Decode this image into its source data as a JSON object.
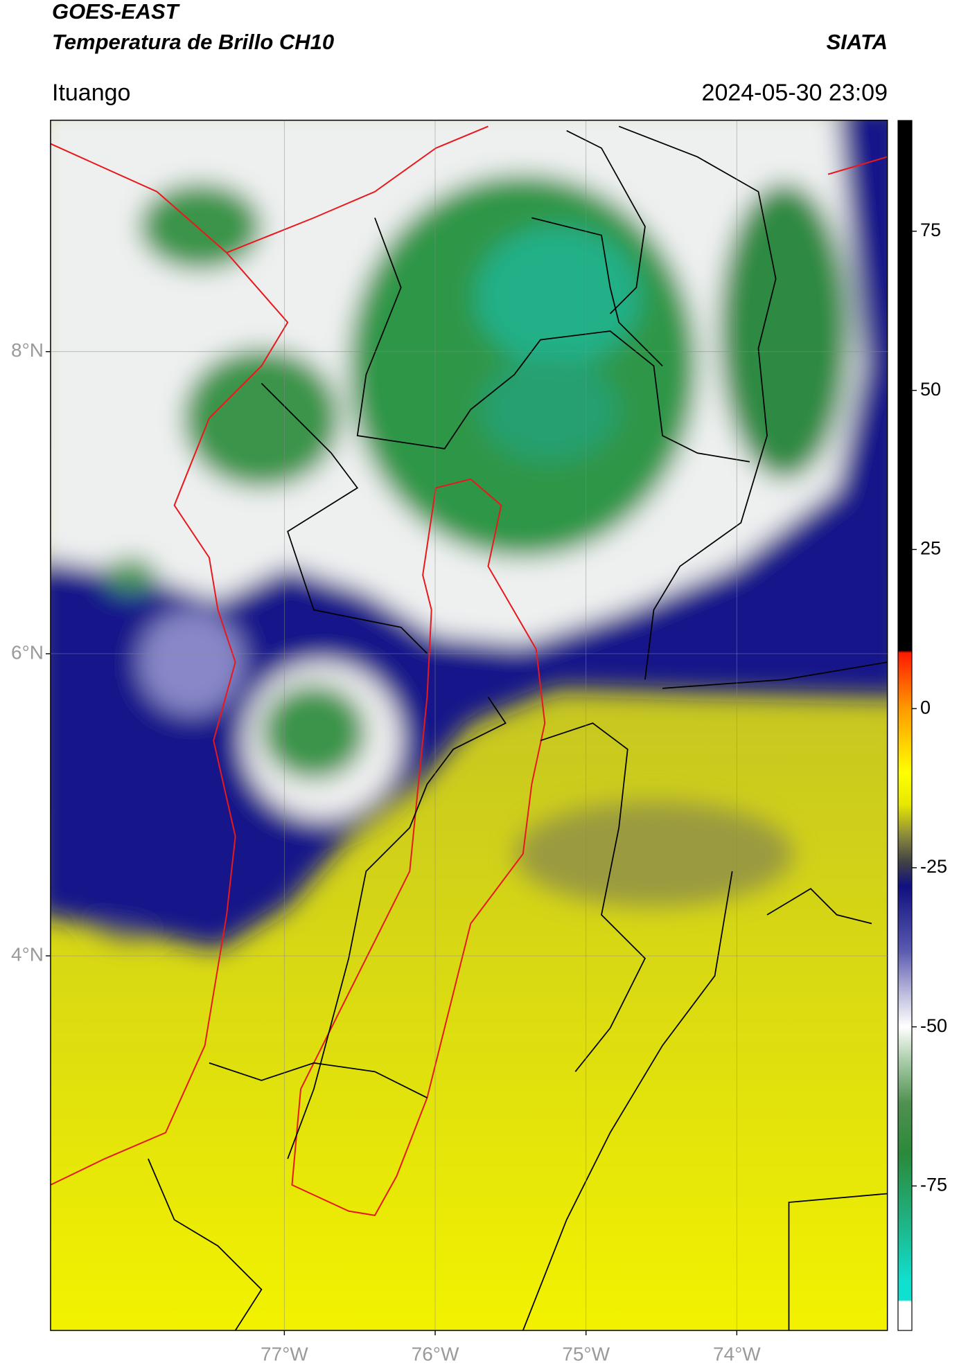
{
  "header": {
    "title": "GOES-EAST",
    "subtitle": "Temperatura de Brillo CH10",
    "source": "SIATA",
    "location": "Ituango",
    "datetime": "2024-05-30 23:09"
  },
  "map": {
    "latlim": [
      1.52,
      9.53
    ],
    "lonlim": [
      -78.55,
      -73.0
    ],
    "latticks": [
      {
        "value": 8,
        "label": "8°N"
      },
      {
        "value": 6,
        "label": "6°N"
      },
      {
        "value": 4,
        "label": "4°N"
      }
    ],
    "lonticks": [
      {
        "value": -77,
        "label": "77°W"
      },
      {
        "value": -76,
        "label": "76°W"
      },
      {
        "value": -75,
        "label": "75°W"
      },
      {
        "value": -74,
        "label": "74°W"
      }
    ],
    "grid": true
  },
  "colorbar": {
    "lim": [
      -97.7,
      92.4
    ],
    "ticks": [
      75,
      50,
      25,
      0,
      -25,
      -50,
      -75
    ]
  }
}
